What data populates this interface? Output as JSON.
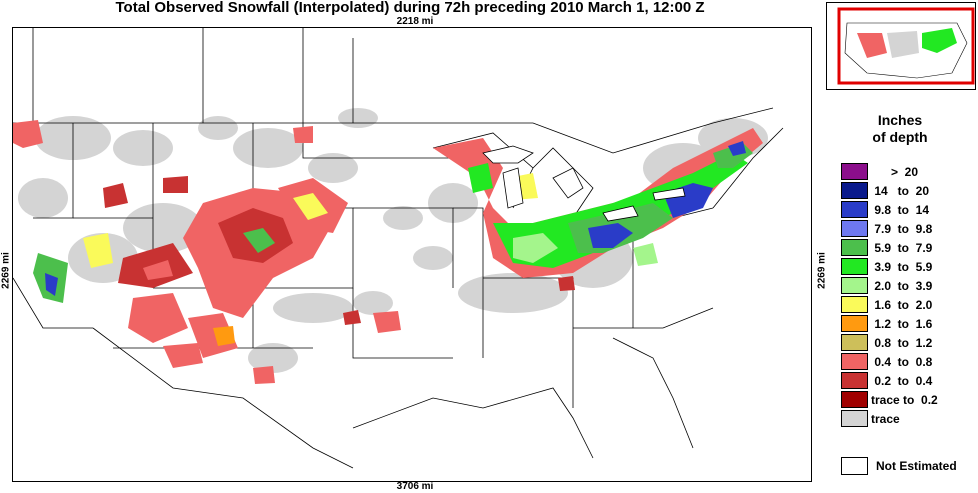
{
  "title": "Total Observed Snowfall (Interpolated) during 72h preceding 2010 March 1, 12:00 Z",
  "dimensions": {
    "top": "2218 mi",
    "bottom": "3706 mi",
    "left": "2269 mi",
    "right": "2269 mi"
  },
  "legend": {
    "title_line1": "Inches",
    "title_line2": "of depth",
    "items": [
      {
        "label": "      >  20",
        "color": "#8b0e8b"
      },
      {
        "label": " 14   to  20",
        "color": "#0a1a8c"
      },
      {
        "label": " 9.8  to  14",
        "color": "#2a3cc8"
      },
      {
        "label": " 7.9  to  9.8",
        "color": "#6e78f0"
      },
      {
        "label": " 5.9  to  7.9",
        "color": "#4cbf4c"
      },
      {
        "label": " 3.9  to  5.9",
        "color": "#22e822"
      },
      {
        "label": " 2.0  to  3.9",
        "color": "#a4f58c"
      },
      {
        "label": " 1.6  to  2.0",
        "color": "#fafa5a"
      },
      {
        "label": " 1.2  to  1.6",
        "color": "#ff9a10"
      },
      {
        "label": " 0.8  to  1.2",
        "color": "#cdbf5a"
      },
      {
        "label": " 0.4  to  0.8",
        "color": "#f06464"
      },
      {
        "label": " 0.2  to  0.4",
        "color": "#c83232"
      },
      {
        "label": "trace to  0.2",
        "color": "#a00000"
      },
      {
        "label": "trace",
        "color": "#d4d4d4"
      }
    ],
    "not_estimated_label": "Not Estimated"
  },
  "colors": {
    "trace": "#d4d4d4",
    "light_red": "#f06464",
    "red": "#c83232",
    "dark_red": "#a00000",
    "green": "#22e822",
    "mid_green": "#4cbf4c",
    "light_green": "#a4f58c",
    "blue": "#2a3cc8",
    "yellow": "#fafa5a",
    "orange": "#ff9a10",
    "inset_frame": "#e00000"
  }
}
